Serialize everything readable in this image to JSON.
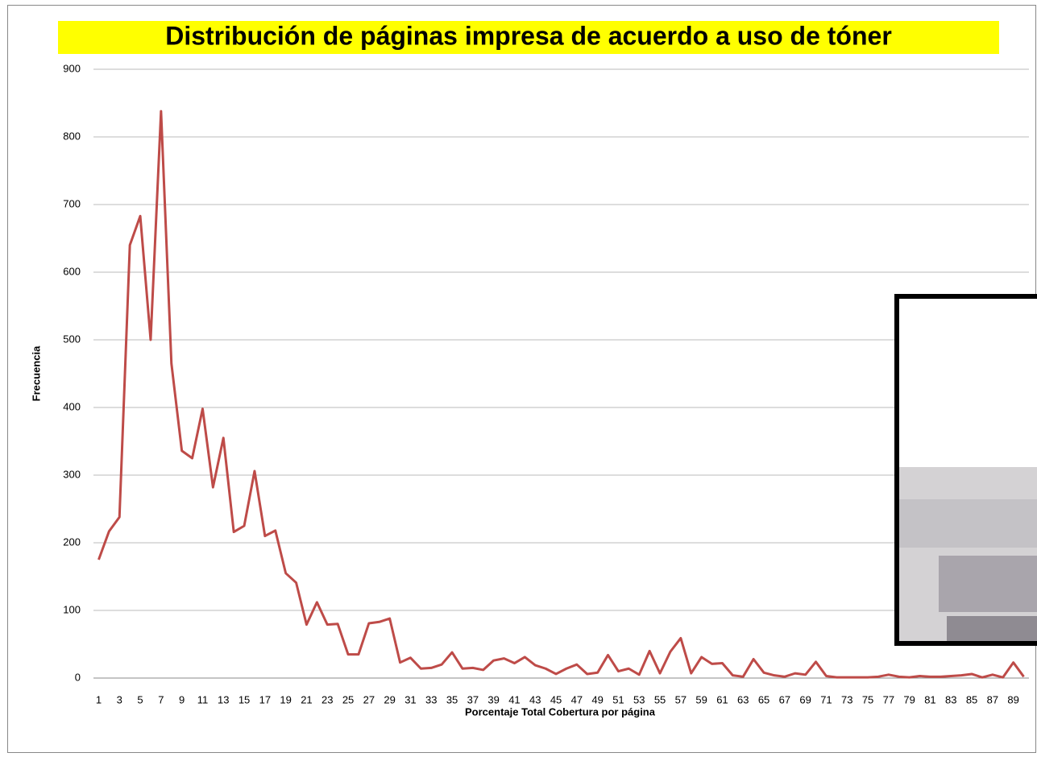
{
  "chart_data": {
    "type": "line",
    "title": "Distribución de páginas impresa de acuerdo a uso de tóner",
    "x_label": "Porcentaje Total Cobertura por página",
    "y_label": "Frecuencia",
    "categories": [
      "1",
      null,
      "3",
      null,
      "5",
      null,
      "7",
      null,
      "9",
      null,
      "11",
      null,
      "13",
      null,
      "15",
      null,
      "17",
      null,
      "19",
      null,
      "21",
      null,
      "23",
      null,
      "25",
      null,
      "27",
      null,
      "29",
      null,
      "31",
      null,
      "33",
      null,
      "35",
      null,
      "37",
      null,
      "39",
      null,
      "41",
      null,
      "43",
      null,
      "45",
      null,
      "47",
      null,
      "49",
      null,
      "51",
      null,
      "53",
      null,
      "55",
      null,
      "57",
      null,
      "59",
      null,
      "61",
      null,
      "63",
      null,
      "65",
      null,
      "67",
      null,
      "69",
      null,
      "71",
      null,
      "73",
      null,
      "75",
      null,
      "77",
      null,
      "79",
      null,
      "81",
      null,
      "83",
      null,
      "85",
      null,
      "87",
      null,
      "89",
      null
    ],
    "series": [
      {
        "name": "Frecuencia",
        "color": "#be4b48",
        "values": [
          175,
          217,
          238,
          640,
          683,
          500,
          838,
          465,
          336,
          325,
          398,
          282,
          355,
          216,
          225,
          306,
          210,
          218,
          155,
          141,
          79,
          112,
          79,
          80,
          35,
          35,
          81,
          83,
          88,
          23,
          30,
          14,
          15,
          20,
          38,
          14,
          15,
          12,
          26,
          29,
          22,
          31,
          19,
          14,
          6,
          14,
          20,
          6,
          8,
          34,
          10,
          14,
          5,
          40,
          7,
          39,
          59,
          7,
          31,
          21,
          22,
          4,
          2,
          28,
          8,
          4,
          2,
          7,
          5,
          24,
          3,
          1,
          1,
          1,
          1,
          2,
          5,
          2,
          1,
          3,
          2,
          2,
          3,
          4,
          6,
          1,
          5,
          1,
          23,
          2
        ]
      }
    ],
    "ylim": [
      0,
      900
    ],
    "yticks": [
      0,
      100,
      200,
      300,
      400,
      500,
      600,
      700,
      800,
      900
    ],
    "grid": true
  }
}
